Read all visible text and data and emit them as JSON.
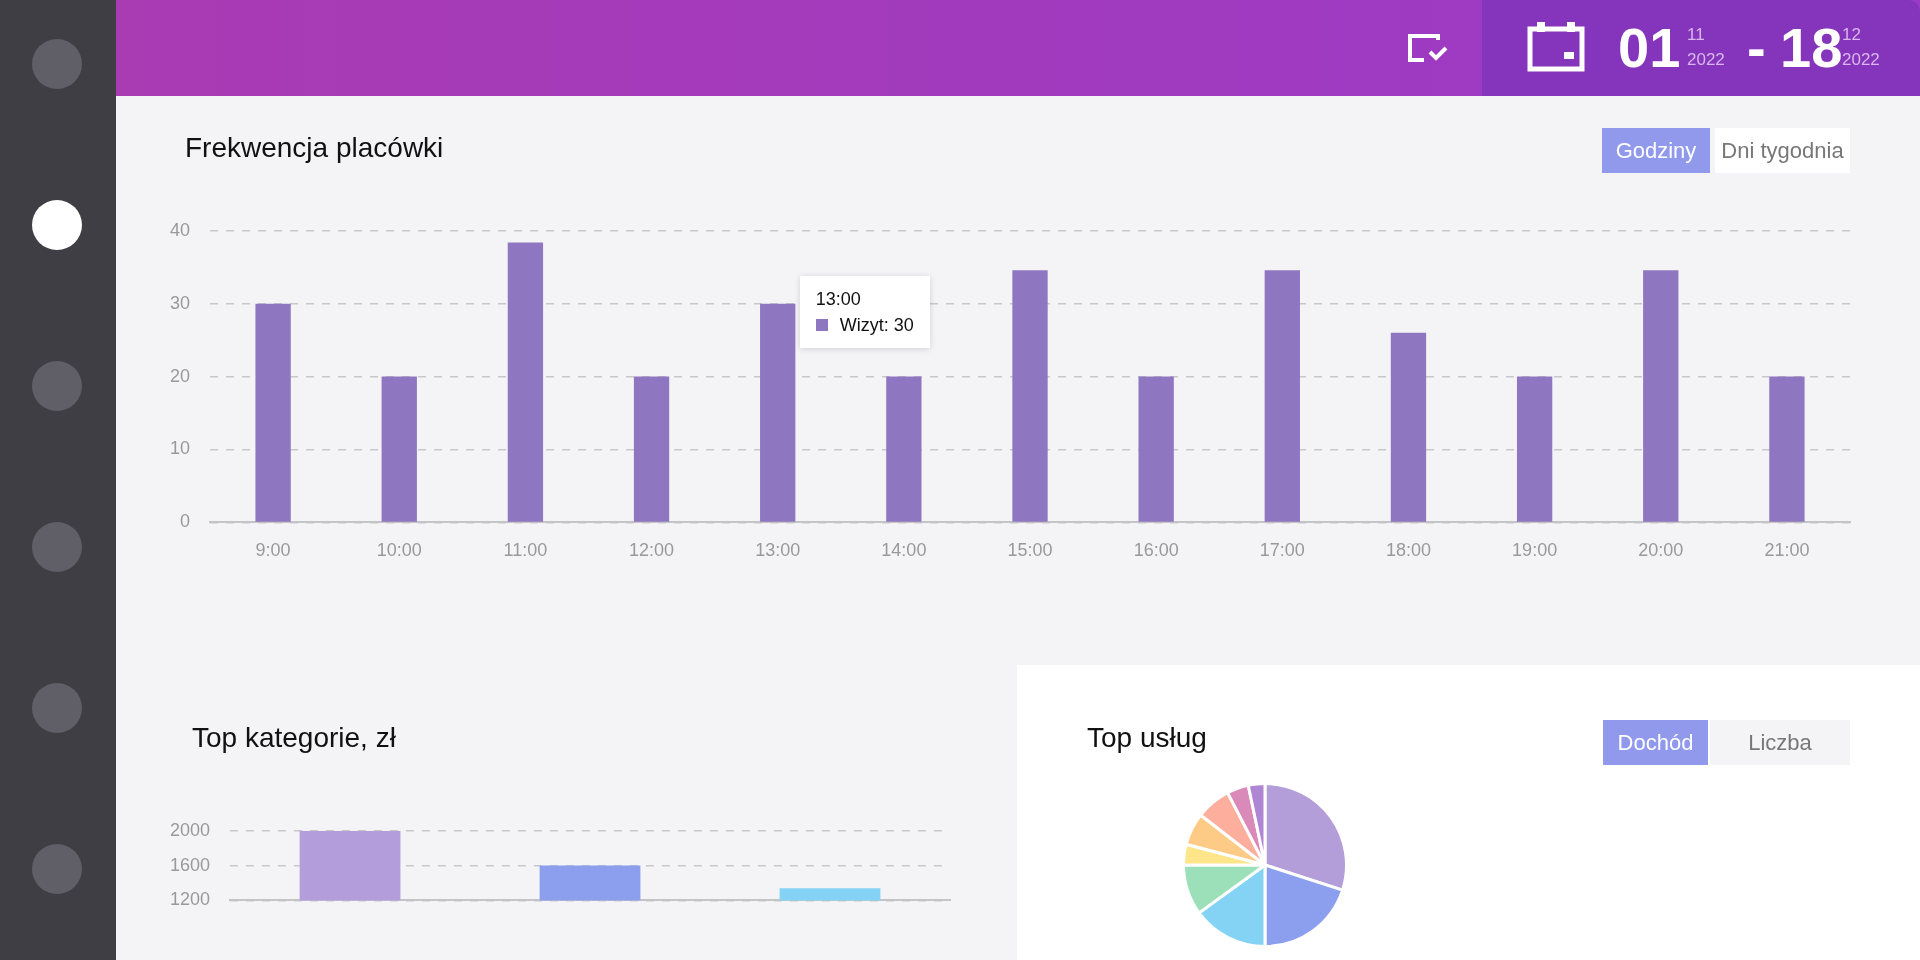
{
  "chart_data": [
    {
      "type": "bar",
      "title": "Frekwencja placówki",
      "categories": [
        "9:00",
        "10:00",
        "11:00",
        "12:00",
        "13:00",
        "14:00",
        "15:00",
        "16:00",
        "17:00",
        "18:00",
        "19:00",
        "20:00",
        "21:00"
      ],
      "series": [
        {
          "color": "#8e77c0",
          "values": [
            30,
            20,
            38.4,
            20,
            30,
            20,
            34.6,
            20,
            34.6,
            26,
            20,
            34.6,
            20
          ]
        }
      ],
      "ylim": [
        0,
        40
      ],
      "yticks": [
        0,
        10,
        20,
        30,
        40
      ],
      "grid": "y",
      "legend": false,
      "annotations": [
        "Godziny",
        "Dni tygodnia",
        "01",
        "11",
        "2022",
        "-",
        "18",
        "12",
        "2022",
        {
          "text": "13:00",
          "x": "13:00",
          "y": 30
        },
        "Wizyt: 30"
      ]
    },
    {
      "type": "bar",
      "title": "Top kategorie, zł",
      "categories": [
        null,
        null,
        null
      ],
      "values": [
        2000,
        1600,
        1340
      ],
      "colors": [
        "#b39ddb",
        "#8c9fee",
        "#84d3f4"
      ],
      "ylim": [
        1200,
        2000
      ],
      "yticks": [
        1200,
        1600,
        2000
      ],
      "grid": "y",
      "legend": false
    },
    {
      "type": "pie",
      "title": "Top usług",
      "categories": [
        null,
        null,
        null,
        null,
        null,
        null,
        null,
        null,
        null
      ],
      "values": [
        30,
        20,
        15,
        10,
        4.1,
        6.4,
        6.9,
        4.3,
        3.3
      ],
      "colors": [
        "#b39ed9",
        "#8c9fee",
        "#84d3f4",
        "#9be0b8",
        "#fde58a",
        "#fecb86",
        "#feae9c",
        "#d98ab8",
        "#ae86d3"
      ],
      "legend": false,
      "annotations": [
        "Dochód",
        "Liczba"
      ]
    }
  ]
}
